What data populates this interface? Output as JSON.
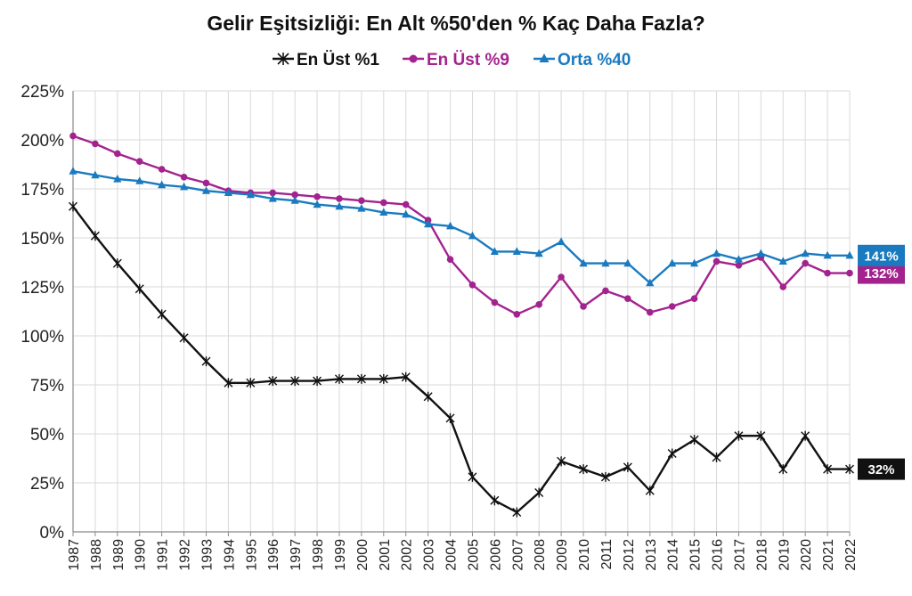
{
  "chart_data": {
    "type": "line",
    "title": "Gelir Eşitsizliği: En Alt %50'den % Kaç Daha Fazla?",
    "xlabel": "",
    "ylabel": "",
    "ylim": [
      0,
      225
    ],
    "y_tick_values": [
      0,
      25,
      50,
      75,
      100,
      125,
      150,
      175,
      200,
      225
    ],
    "y_tick_labels": [
      "0%",
      "25%",
      "50%",
      "75%",
      "100%",
      "125%",
      "150%",
      "175%",
      "200%",
      "225%"
    ],
    "grid": true,
    "legend_position": "top",
    "categories": [
      "1987",
      "1988",
      "1989",
      "1990",
      "1991",
      "1992",
      "1993",
      "1994",
      "1995",
      "1996",
      "1997",
      "1998",
      "1999",
      "2000",
      "2001",
      "2002",
      "2003",
      "2004",
      "2005",
      "2006",
      "2007",
      "2008",
      "2009",
      "2010",
      "2011",
      "2012",
      "2013",
      "2014",
      "2015",
      "2016",
      "2017",
      "2018",
      "2019",
      "2020",
      "2021",
      "2022"
    ],
    "series": [
      {
        "name": "En Üst %1",
        "color": "#111111",
        "marker": "star",
        "end_label": "32%",
        "values": [
          166,
          151,
          137,
          124,
          111,
          99,
          87,
          76,
          76,
          77,
          77,
          77,
          78,
          78,
          78,
          79,
          69,
          58,
          28,
          16,
          10,
          20,
          36,
          32,
          28,
          33,
          21,
          40,
          47,
          38,
          49,
          49,
          32,
          49,
          32,
          32
        ]
      },
      {
        "name": "En Üst %9",
        "color": "#a3238e",
        "marker": "circle",
        "end_label": "132%",
        "values": [
          202,
          198,
          193,
          189,
          185,
          181,
          178,
          174,
          173,
          173,
          172,
          171,
          170,
          169,
          168,
          167,
          159,
          139,
          126,
          117,
          111,
          116,
          130,
          115,
          123,
          119,
          112,
          115,
          119,
          138,
          136,
          140,
          125,
          137,
          132,
          132
        ]
      },
      {
        "name": "Orta %40",
        "color": "#1a7abf",
        "marker": "triangle",
        "end_label": "141%",
        "values": [
          184,
          182,
          180,
          179,
          177,
          176,
          174,
          173,
          172,
          170,
          169,
          167,
          166,
          165,
          163,
          162,
          157,
          156,
          151,
          143,
          143,
          142,
          148,
          137,
          137,
          137,
          127,
          137,
          137,
          142,
          139,
          142,
          138,
          142,
          141,
          141
        ]
      }
    ]
  }
}
